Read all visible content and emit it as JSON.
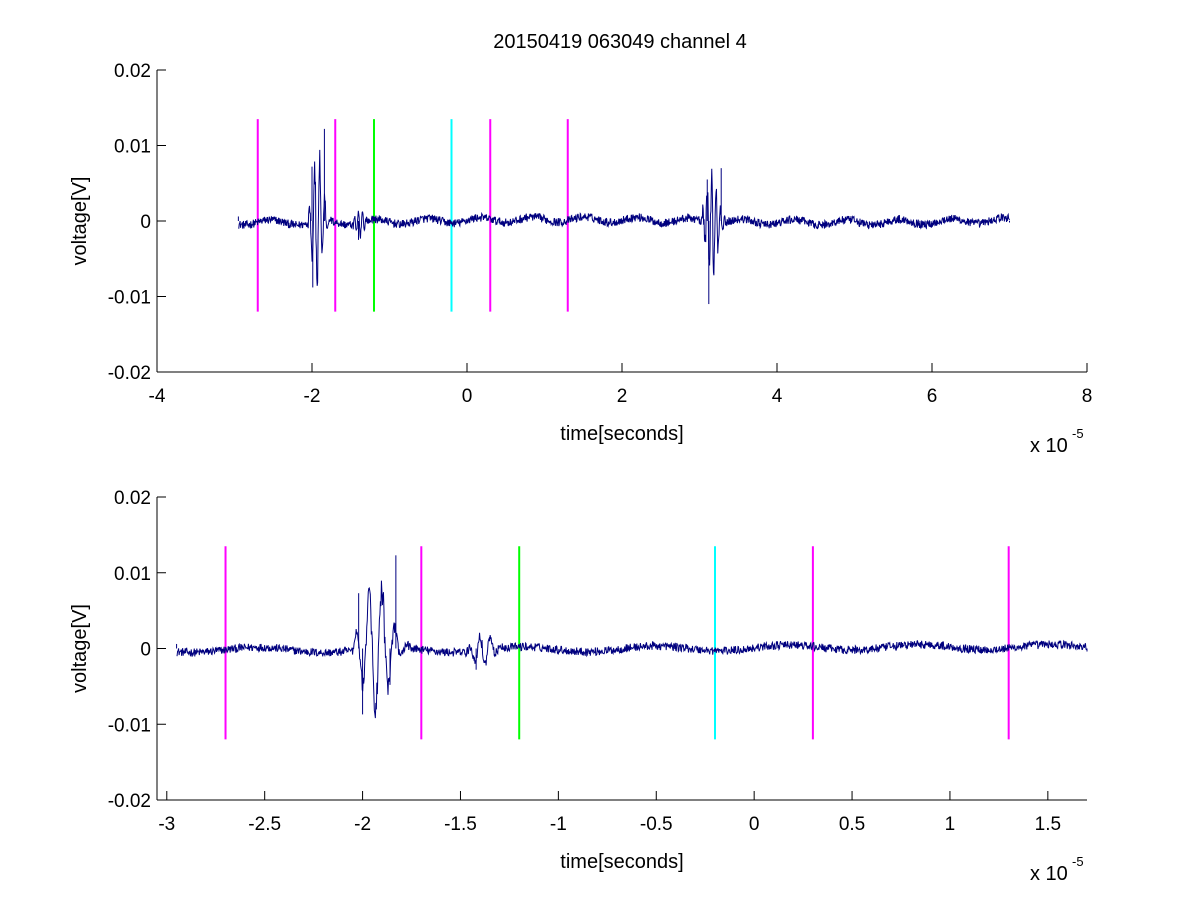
{
  "figure": {
    "title": "20150419 063049 channel 4",
    "colors": {
      "signal": "#00007f",
      "magenta": "#ff00ff",
      "green": "#00ff00",
      "cyan": "#00ffff",
      "axes": "#000000",
      "background": "#ffffff"
    }
  },
  "chart_data": [
    {
      "type": "line",
      "title": "20150419 063049 channel 4",
      "xlabel": "time[seconds]",
      "ylabel": "voltage[V]",
      "x_exponent_base": "x 10",
      "x_exponent_power": "-5",
      "x_unit_scale": 1e-05,
      "xlim": [
        -4,
        8
      ],
      "ylim": [
        -0.02,
        0.02
      ],
      "xticks": [
        -4,
        -2,
        0,
        2,
        4,
        6,
        8
      ],
      "xtick_labels": [
        "-4",
        "-2",
        "0",
        "2",
        "4",
        "6",
        "8"
      ],
      "yticks": [
        0.02,
        0.01,
        0,
        -0.01,
        -0.02
      ],
      "ytick_labels": [
        "0.02",
        "0.01",
        "0",
        "-0.01",
        "-0.02"
      ],
      "grid": false,
      "signal_range": [
        -2.95,
        7.0
      ],
      "signal_key_points": [
        {
          "x": -2.95,
          "y": 0.0006
        },
        {
          "x": -2.0,
          "y": 0.0072
        },
        {
          "x": -1.99,
          "y": -0.0088
        },
        {
          "x": -1.84,
          "y": 0.0122
        },
        {
          "x": -1.4,
          "y": -0.0025
        },
        {
          "x": 3.1,
          "y": 0.0055
        },
        {
          "x": 3.12,
          "y": -0.011
        },
        {
          "x": 3.28,
          "y": 0.007
        },
        {
          "x": 7.0,
          "y": -0.0002
        }
      ],
      "markers": [
        {
          "x": -2.7,
          "color": "magenta",
          "ymin": -0.012,
          "ymax": 0.0135
        },
        {
          "x": -1.7,
          "color": "magenta",
          "ymin": -0.012,
          "ymax": 0.0135
        },
        {
          "x": -1.2,
          "color": "green",
          "ymin": -0.012,
          "ymax": 0.0135
        },
        {
          "x": -0.2,
          "color": "cyan",
          "ymin": -0.012,
          "ymax": 0.0135
        },
        {
          "x": 0.3,
          "color": "magenta",
          "ymin": -0.012,
          "ymax": 0.0135
        },
        {
          "x": 1.3,
          "color": "magenta",
          "ymin": -0.012,
          "ymax": 0.0135
        }
      ]
    },
    {
      "type": "line",
      "xlabel": "time[seconds]",
      "ylabel": "voltage[V]",
      "x_exponent_base": "x 10",
      "x_exponent_power": "-5",
      "x_unit_scale": 1e-05,
      "xlim": [
        -3.05,
        1.7
      ],
      "ylim": [
        -0.02,
        0.02
      ],
      "xticks": [
        -3,
        -2.5,
        -2,
        -1.5,
        -1,
        -0.5,
        0,
        0.5,
        1,
        1.5
      ],
      "xtick_labels": [
        "-3",
        "-2.5",
        "-2",
        "-1.5",
        "-1",
        "-0.5",
        "0",
        "0.5",
        "1",
        "1.5"
      ],
      "yticks": [
        0.02,
        0.01,
        0,
        -0.01,
        -0.02
      ],
      "ytick_labels": [
        "0.02",
        "0.01",
        "0",
        "-0.01",
        "-0.02"
      ],
      "grid": false,
      "signal_range": [
        -2.95,
        1.7
      ],
      "signal_key_points": [
        {
          "x": -2.95,
          "y": 0.0006
        },
        {
          "x": -2.02,
          "y": 0.0073
        },
        {
          "x": -2.0,
          "y": -0.0087
        },
        {
          "x": -1.83,
          "y": 0.0123
        },
        {
          "x": -1.86,
          "y": -0.0048
        },
        {
          "x": -1.42,
          "y": -0.0028
        },
        {
          "x": 1.7,
          "y": -0.0004
        }
      ],
      "markers": [
        {
          "x": -2.7,
          "color": "magenta",
          "ymin": -0.012,
          "ymax": 0.0135
        },
        {
          "x": -1.7,
          "color": "magenta",
          "ymin": -0.012,
          "ymax": 0.0135
        },
        {
          "x": -1.2,
          "color": "green",
          "ymin": -0.012,
          "ymax": 0.0135
        },
        {
          "x": -0.2,
          "color": "cyan",
          "ymin": -0.012,
          "ymax": 0.0135
        },
        {
          "x": 0.3,
          "color": "magenta",
          "ymin": -0.012,
          "ymax": 0.0135
        },
        {
          "x": 1.3,
          "color": "magenta",
          "ymin": -0.012,
          "ymax": 0.0135
        }
      ]
    }
  ]
}
